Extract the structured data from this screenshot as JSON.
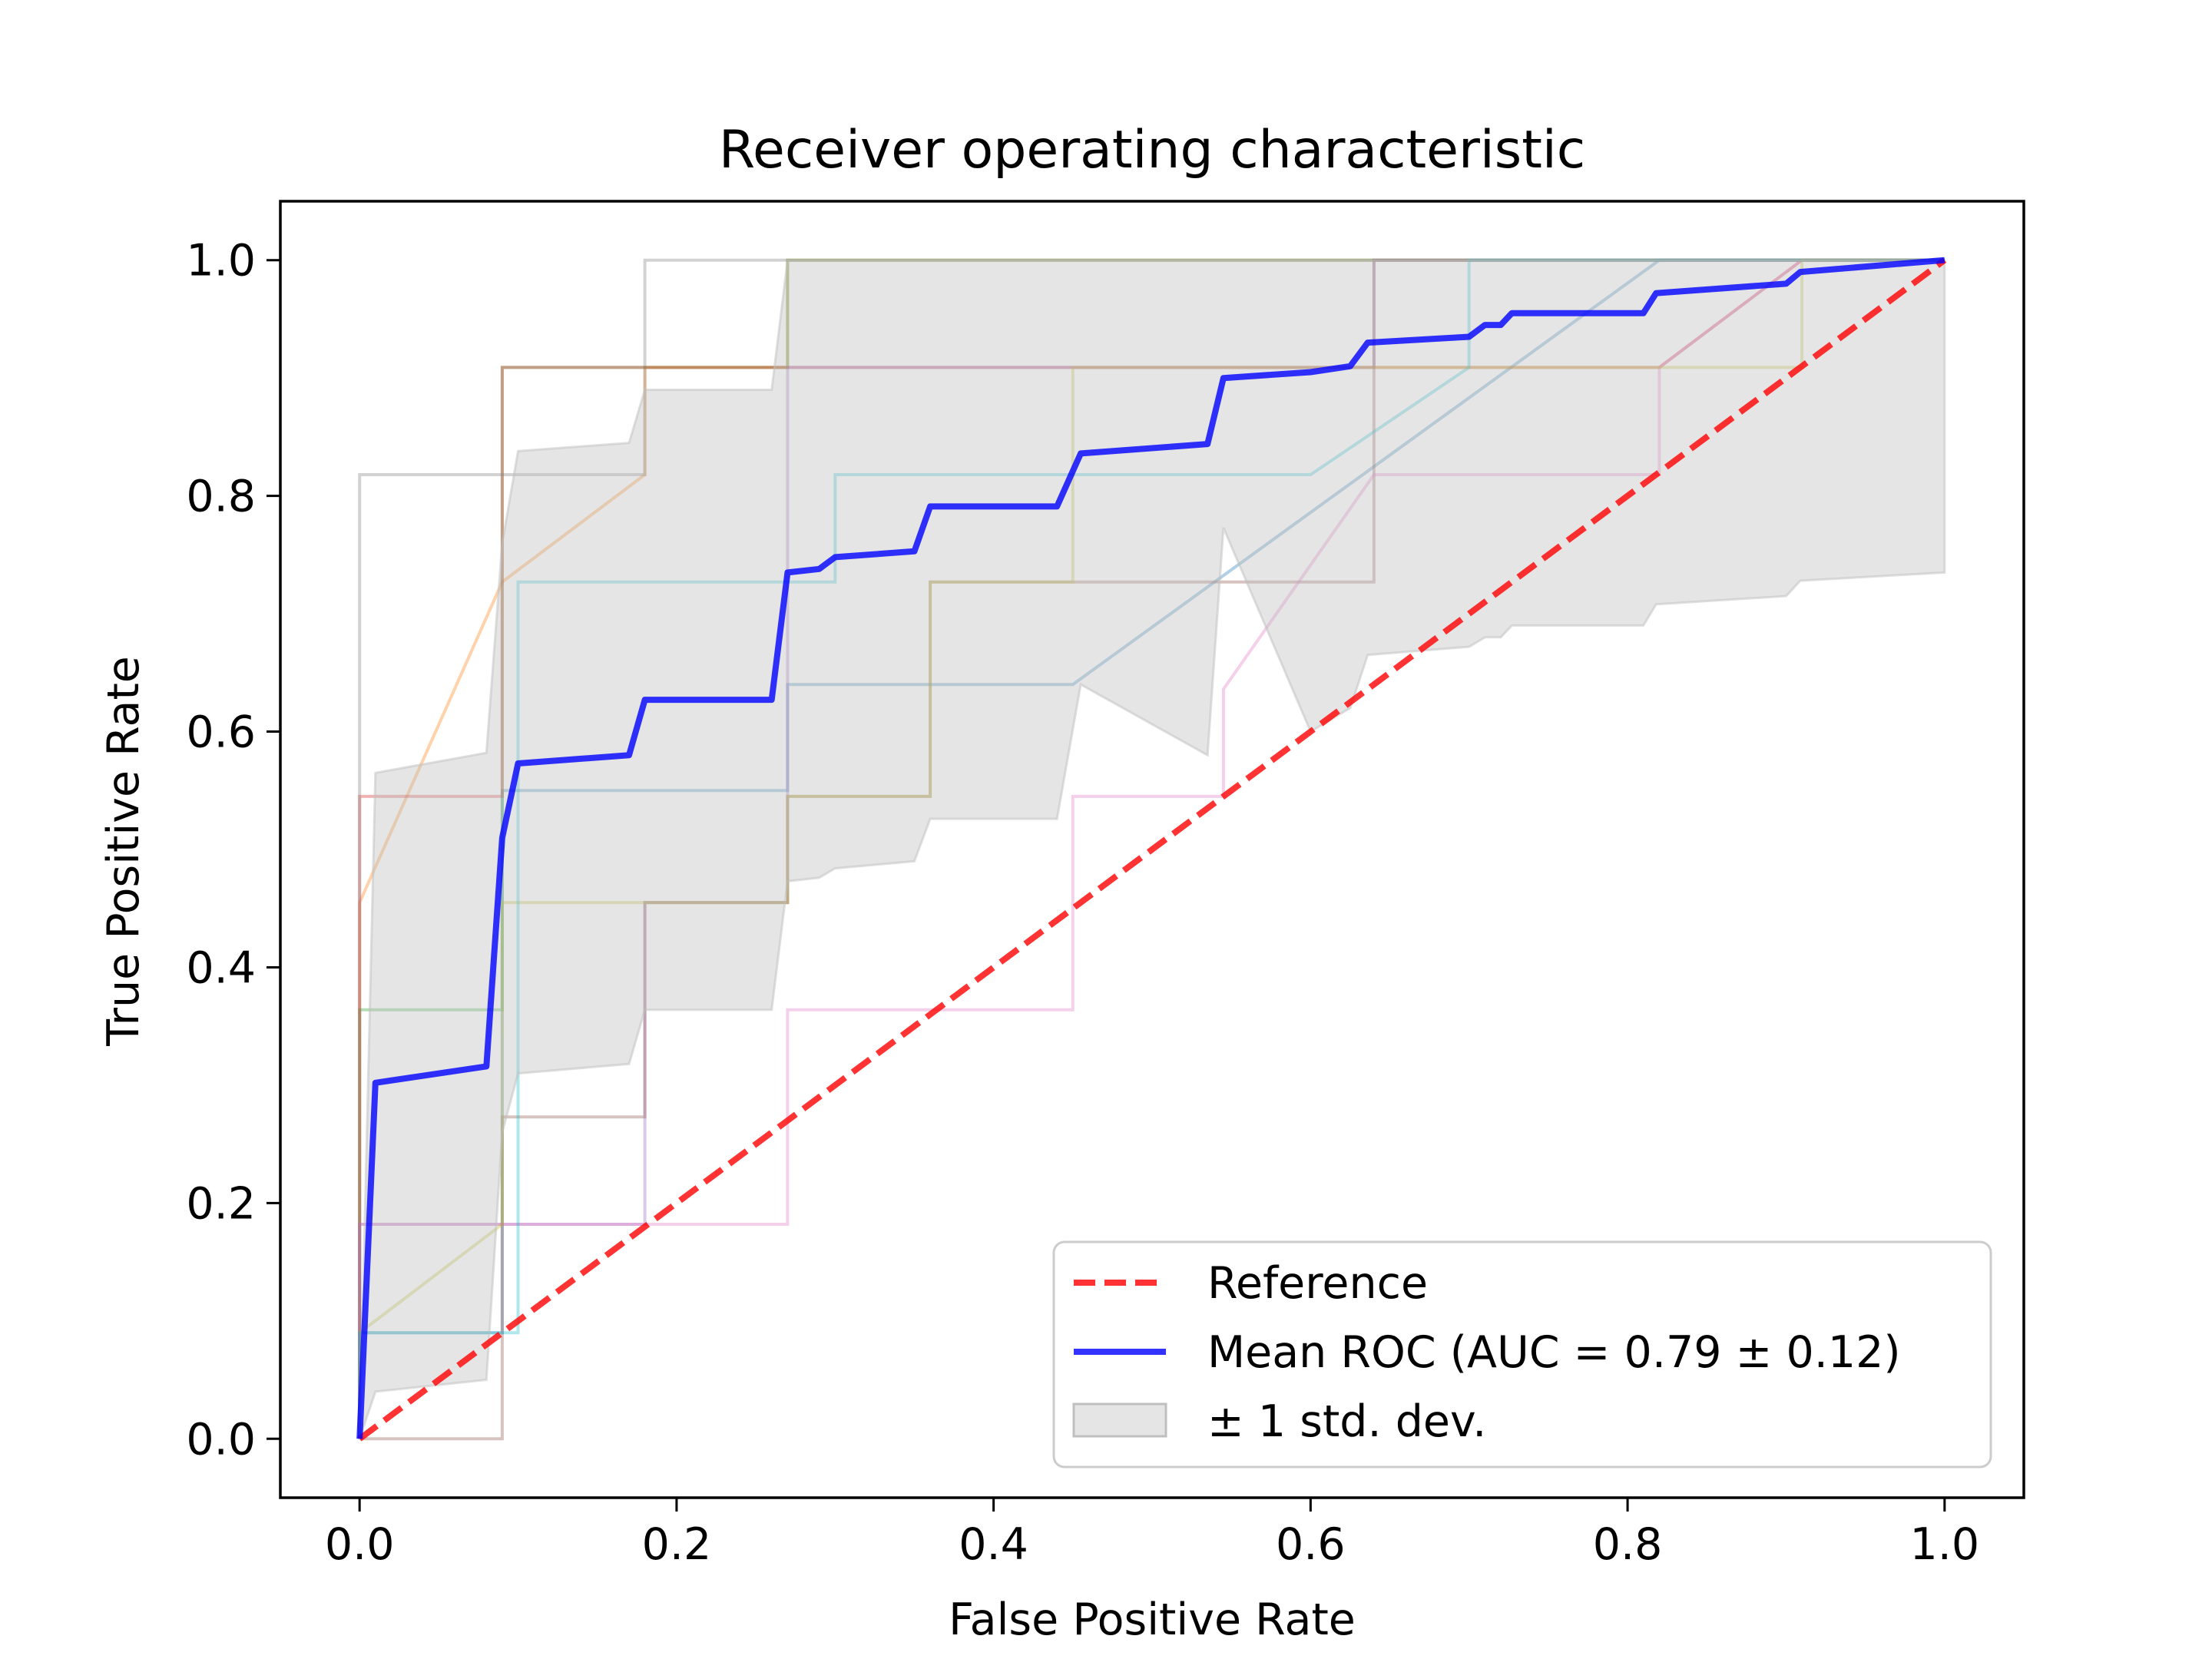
{
  "chart_data": {
    "type": "line",
    "title": "Receiver operating characteristic",
    "xlabel": "False Positive Rate",
    "ylabel": "True Positive Rate",
    "xlim": [
      -0.05,
      1.05
    ],
    "ylim": [
      -0.05,
      1.05
    ],
    "xticks": [
      "0.0",
      "0.2",
      "0.4",
      "0.6",
      "0.8",
      "1.0"
    ],
    "yticks": [
      "0.0",
      "0.2",
      "0.4",
      "0.6",
      "0.8",
      "1.0"
    ],
    "grid": false,
    "legend_position": "lower-right",
    "legend": [
      {
        "label": "Reference",
        "style": "dashed",
        "color": "#ff0000"
      },
      {
        "label": "Mean ROC (AUC = 0.79 ± 0.12)",
        "style": "solid",
        "color": "#0000ff"
      },
      {
        "label": "± 1 std. dev.",
        "style": "patch",
        "color": "#bfbfbf"
      }
    ],
    "series": [
      {
        "name": "Reference",
        "color": "#ff0000",
        "style": "dashed",
        "x": [
          0,
          1
        ],
        "y": [
          0,
          1
        ]
      },
      {
        "name": "Mean ROC (AUC = 0.79 ± 0.12)",
        "color": "#0000ff",
        "style": "solid",
        "x": [
          0,
          0.01,
          0.08,
          0.09,
          0.1,
          0.17,
          0.18,
          0.26,
          0.27,
          0.29,
          0.3,
          0.35,
          0.36,
          0.44,
          0.455,
          0.535,
          0.545,
          0.6,
          0.625,
          0.636,
          0.7,
          0.71,
          0.72,
          0.727,
          0.81,
          0.818,
          0.9,
          0.909,
          1.0
        ],
        "y": [
          0,
          0.302,
          0.316,
          0.51,
          0.573,
          0.58,
          0.627,
          0.627,
          0.735,
          0.738,
          0.748,
          0.753,
          0.791,
          0.791,
          0.836,
          0.844,
          0.9,
          0.905,
          0.91,
          0.93,
          0.935,
          0.945,
          0.945,
          0.955,
          0.955,
          0.972,
          0.98,
          0.99,
          1.0
        ]
      }
    ],
    "std_band": {
      "name": "± 1 std. dev.",
      "color": "#bfbfbf",
      "x": [
        0,
        0.01,
        0.08,
        0.09,
        0.1,
        0.17,
        0.18,
        0.26,
        0.27,
        0.29,
        0.3,
        0.35,
        0.36,
        0.44,
        0.455,
        0.535,
        0.545,
        0.6,
        0.625,
        0.636,
        0.7,
        0.71,
        0.72,
        0.727,
        0.81,
        0.818,
        0.9,
        0.909,
        1.0
      ],
      "upper": [
        0,
        0.565,
        0.582,
        0.76,
        0.838,
        0.845,
        0.89,
        0.89,
        1.0,
        1.0,
        1.0,
        1.0,
        1.0,
        1.0,
        1.0,
        1.0,
        1.0,
        1.0,
        1.0,
        1.0,
        1.0,
        1.0,
        1.0,
        1.0,
        1.0,
        1.0,
        1.0,
        1.0,
        1.0
      ],
      "lower": [
        0,
        0.04,
        0.05,
        0.26,
        0.31,
        0.318,
        0.364,
        0.364,
        0.473,
        0.476,
        0.484,
        0.49,
        0.526,
        0.526,
        0.64,
        0.58,
        0.773,
        0.6,
        0.62,
        0.665,
        0.672,
        0.68,
        0.68,
        0.69,
        0.69,
        0.708,
        0.715,
        0.728,
        0.735
      ]
    },
    "folds": [
      {
        "color": "#1f77b4",
        "x": [
          0,
          0,
          0.09,
          0.09,
          0.27,
          0.27,
          0.45,
          0.82,
          0.82,
          1
        ],
        "y": [
          0,
          0.09,
          0.09,
          0.55,
          0.55,
          0.64,
          0.64,
          1,
          1,
          1
        ]
      },
      {
        "color": "#ff7f0e",
        "x": [
          0,
          0,
          0.09,
          0.18,
          0.18,
          0.27,
          0.27,
          1
        ],
        "y": [
          0,
          0.455,
          0.727,
          0.818,
          0.909,
          0.909,
          1,
          1
        ]
      },
      {
        "color": "#2ca02c",
        "x": [
          0,
          0,
          0.09,
          0.09,
          0.27,
          0.27,
          1
        ],
        "y": [
          0,
          0.364,
          0.364,
          0.909,
          0.909,
          1,
          1
        ]
      },
      {
        "color": "#d62728",
        "x": [
          0,
          0,
          0.09,
          0.09,
          0.82,
          0.91,
          1
        ],
        "y": [
          0,
          0.545,
          0.545,
          0.909,
          0.909,
          1,
          1
        ]
      },
      {
        "color": "#9467bd",
        "x": [
          0,
          0,
          0.18,
          0.18,
          0.27,
          0.27,
          0.64,
          0.64,
          1
        ],
        "y": [
          0,
          0.182,
          0.182,
          0.455,
          0.455,
          0.909,
          0.909,
          1,
          1
        ]
      },
      {
        "color": "#8c564b",
        "x": [
          0,
          0,
          0.09,
          0.09,
          0.18,
          0.18,
          0.27,
          0.27,
          0.36,
          0.36,
          0.64,
          0.64,
          1
        ],
        "y": [
          0,
          0,
          0,
          0.273,
          0.273,
          0.455,
          0.455,
          0.545,
          0.545,
          0.727,
          0.727,
          1,
          1
        ]
      },
      {
        "color": "#e377c2",
        "x": [
          0,
          0,
          0.27,
          0.27,
          0.45,
          0.45,
          0.545,
          0.545,
          0.64,
          0.82,
          0.82,
          0.91,
          1
        ],
        "y": [
          0,
          0.182,
          0.182,
          0.364,
          0.364,
          0.545,
          0.545,
          0.636,
          0.818,
          0.818,
          0.909,
          1,
          1
        ]
      },
      {
        "color": "#7f7f7f",
        "x": [
          0,
          0,
          0.18,
          0.18,
          1
        ],
        "y": [
          0,
          0.818,
          0.818,
          1,
          1
        ]
      },
      {
        "color": "#bcbd22",
        "x": [
          0,
          0.09,
          0.09,
          0.27,
          0.27,
          0.36,
          0.36,
          0.45,
          0.45,
          0.91,
          0.91,
          1
        ],
        "y": [
          0.09,
          0.182,
          0.455,
          0.455,
          0.545,
          0.545,
          0.727,
          0.727,
          0.909,
          0.909,
          1,
          1
        ]
      },
      {
        "color": "#17becf",
        "x": [
          0,
          0,
          0.1,
          0.1,
          0.3,
          0.3,
          0.6,
          0.7,
          0.7,
          1
        ],
        "y": [
          0,
          0.09,
          0.09,
          0.727,
          0.727,
          0.818,
          0.818,
          0.909,
          1,
          1
        ]
      }
    ]
  }
}
